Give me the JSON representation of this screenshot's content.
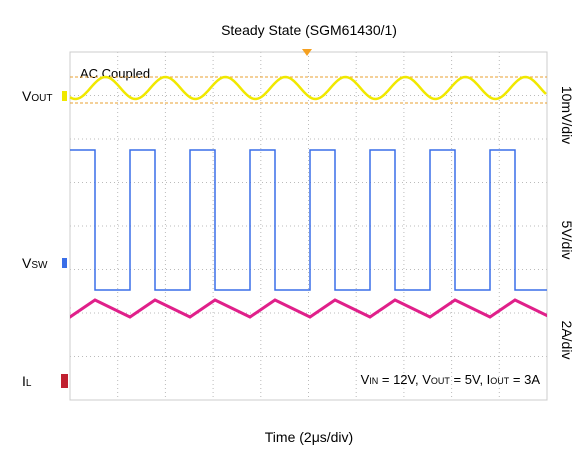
{
  "title": "Steady State (SGM61430/1)",
  "x_axis_label": "Time (2μs/div)",
  "mode_label": "AC Coupled",
  "channels": [
    {
      "main": "V",
      "sub": "OUT",
      "scale": "10mV/div"
    },
    {
      "main": "V",
      "sub": "SW",
      "scale": "5V/div"
    },
    {
      "main": "I",
      "sub": "L",
      "scale": "2A/div"
    }
  ],
  "conditions": [
    {
      "text": "V"
    },
    {
      "sub": "IN"
    },
    {
      "text": " = 12V, V"
    },
    {
      "sub": "OUT"
    },
    {
      "text": " = 5V, I"
    },
    {
      "sub": "OUT"
    },
    {
      "text": " = 3A"
    }
  ]
}
